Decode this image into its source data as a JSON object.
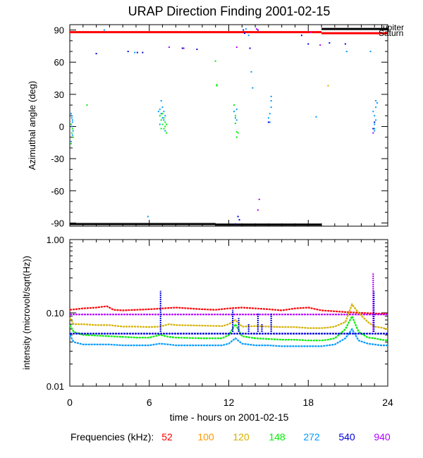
{
  "title": "URAP Direction Finding  2001-02-15",
  "xlabel": "time - hours on 2001-02-15",
  "frequencies_label": "Frequencies (kHz):",
  "colors": {
    "52": "#ff0000",
    "100": "#ff9900",
    "120": "#d4b000",
    "148": "#00ee00",
    "272": "#0099ff",
    "540": "#0000dd",
    "940": "#b000ff"
  },
  "chart_data": [
    {
      "type": "scatter",
      "ylabel": "Azimuthal angle (deg)",
      "xlim": [
        0,
        24
      ],
      "ylim": [
        -93,
        95
      ],
      "xticks": [
        0,
        6,
        12,
        18,
        24
      ],
      "yticks": [
        -90,
        -60,
        -30,
        0,
        30,
        60,
        90
      ],
      "yticklabels": [
        "-90",
        "-60",
        "-30",
        "0",
        "30",
        "60",
        "90"
      ],
      "reference_lines": [
        {
          "name": "Jupiter",
          "color": "#000000",
          "segments": [
            [
              19.0,
              24.0,
              91
            ]
          ]
        },
        {
          "name": "Saturn",
          "color": "#ff0000",
          "segments": [
            [
              0.0,
              19.0,
              88
            ],
            [
              19.0,
              24.0,
              87
            ]
          ]
        },
        {
          "name": "",
          "color": "#000000",
          "segments": [
            [
              0.0,
              11.0,
              -91
            ],
            [
              11.0,
              19.0,
              -91.5
            ]
          ]
        }
      ],
      "points": [
        {
          "f": "272",
          "pts": [
            [
              0.1,
              12
            ],
            [
              0.15,
              8
            ],
            [
              0.2,
              4
            ],
            [
              0.15,
              0
            ],
            [
              0.25,
              -4
            ],
            [
              0.2,
              -8
            ],
            [
              0.1,
              -14
            ],
            [
              0.15,
              10
            ],
            [
              0.2,
              6
            ]
          ]
        },
        {
          "f": "148",
          "pts": [
            [
              0.1,
              2
            ],
            [
              0.2,
              -2
            ],
            [
              0.15,
              -6
            ],
            [
              0.25,
              -10
            ],
            [
              0.1,
              -16
            ],
            [
              1.3,
              20
            ]
          ]
        },
        {
          "f": "540",
          "pts": [
            [
              2.0,
              68
            ],
            [
              4.4,
              70
            ],
            [
              5.1,
              69
            ],
            [
              5.5,
              69
            ]
          ]
        },
        {
          "f": "272",
          "pts": [
            [
              4.9,
              69
            ],
            [
              2.6,
              90
            ],
            [
              5.9,
              -84
            ]
          ]
        },
        {
          "f": "148",
          "pts": [
            [
              6.8,
              10
            ],
            [
              6.9,
              6
            ],
            [
              7.0,
              2
            ],
            [
              7.1,
              -2
            ],
            [
              7.2,
              4
            ],
            [
              7.3,
              -6
            ],
            [
              7.1,
              8
            ],
            [
              7.0,
              12
            ],
            [
              6.9,
              -2
            ],
            [
              7.2,
              0
            ],
            [
              7.3,
              2
            ]
          ]
        },
        {
          "f": "272",
          "pts": [
            [
              6.7,
              14
            ],
            [
              6.8,
              16
            ],
            [
              6.9,
              12
            ],
            [
              7.0,
              8
            ],
            [
              7.1,
              14
            ],
            [
              7.2,
              10
            ],
            [
              6.9,
              24
            ],
            [
              7.0,
              18
            ],
            [
              7.1,
              6
            ],
            [
              6.8,
              2
            ],
            [
              7.2,
              -4
            ]
          ]
        },
        {
          "f": "940",
          "pts": [
            [
              7.5,
              74
            ],
            [
              8.6,
              73
            ]
          ]
        },
        {
          "f": "540",
          "pts": [
            [
              8.5,
              73
            ],
            [
              9.6,
              72
            ]
          ]
        },
        {
          "f": "148",
          "pts": [
            [
              11.0,
              61
            ],
            [
              11.1,
              39
            ],
            [
              11.1,
              38
            ],
            [
              12.4,
              20
            ],
            [
              12.5,
              10
            ],
            [
              12.5,
              3
            ],
            [
              12.6,
              -5
            ],
            [
              12.7,
              -6
            ],
            [
              12.6,
              -10
            ]
          ]
        },
        {
          "f": "272",
          "pts": [
            [
              12.4,
              14
            ],
            [
              12.5,
              8
            ],
            [
              12.6,
              6
            ],
            [
              12.6,
              16
            ],
            [
              13.3,
              91
            ],
            [
              13.5,
              85
            ],
            [
              13.7,
              51
            ],
            [
              13.8,
              36
            ],
            [
              15.2,
              24
            ],
            [
              15.2,
              18
            ],
            [
              15.1,
              12
            ],
            [
              15.0,
              8
            ],
            [
              15.1,
              4
            ],
            [
              15.2,
              28
            ],
            [
              18.6,
              9
            ],
            [
              20.9,
              70
            ],
            [
              22.7,
              70
            ]
          ]
        },
        {
          "f": "540",
          "pts": [
            [
              12.7,
              -84
            ],
            [
              12.8,
              -87
            ],
            [
              12.5,
              -91
            ],
            [
              13.1,
              90
            ],
            [
              13.2,
              87
            ],
            [
              13.6,
              73
            ],
            [
              14.2,
              90
            ],
            [
              15.0,
              4
            ],
            [
              17.5,
              85
            ],
            [
              18.0,
              77
            ],
            [
              19.6,
              78
            ],
            [
              20.8,
              77
            ]
          ]
        },
        {
          "f": "940",
          "pts": [
            [
              12.6,
              74
            ],
            [
              14.3,
              -68
            ],
            [
              14.2,
              -78
            ],
            [
              14.1,
              91
            ],
            [
              18.2,
              88
            ],
            [
              18.9,
              76
            ]
          ]
        },
        {
          "f": "120",
          "pts": [
            [
              19.5,
              38
            ]
          ]
        },
        {
          "f": "272",
          "pts": [
            [
              23.0,
              -4
            ],
            [
              23.0,
              2
            ],
            [
              23.1,
              6
            ],
            [
              23.0,
              10
            ],
            [
              22.9,
              14
            ],
            [
              23.1,
              18
            ],
            [
              23.2,
              22
            ],
            [
              23.1,
              24
            ],
            [
              23.0,
              -2
            ]
          ]
        },
        {
          "f": "540",
          "pts": [
            [
              22.9,
              -2
            ],
            [
              23.0,
              4
            ]
          ]
        },
        {
          "f": "940",
          "pts": [
            [
              22.9,
              -6
            ]
          ]
        }
      ]
    },
    {
      "type": "line",
      "ylabel": "intensity (microvolt/sqrt(Hz))",
      "xlim": [
        0,
        24
      ],
      "ylim": [
        0.01,
        1.0
      ],
      "yscale": "log",
      "xticks": [
        0,
        6,
        12,
        18,
        24
      ],
      "xticklabels": [
        "0",
        "6",
        "12",
        "18",
        "24"
      ],
      "yticks": [
        0.01,
        0.1,
        1.0
      ],
      "yticklabels": [
        "0.01",
        "0.10",
        "1.00"
      ],
      "series": [
        {
          "f": "52",
          "x": [
            0,
            1,
            2,
            2.8,
            3.3,
            4,
            5,
            6,
            7,
            8,
            9,
            10,
            11,
            12,
            13,
            14,
            15,
            16,
            17,
            18,
            19,
            20,
            21,
            22,
            23,
            24
          ],
          "y": [
            0.11,
            0.115,
            0.118,
            0.123,
            0.11,
            0.108,
            0.11,
            0.112,
            0.115,
            0.118,
            0.115,
            0.112,
            0.11,
            0.115,
            0.118,
            0.115,
            0.112,
            0.108,
            0.115,
            0.118,
            0.108,
            0.105,
            0.102,
            0.1,
            0.098,
            0.097
          ]
        },
        {
          "f": "940",
          "x": [
            0,
            2,
            4,
            6,
            8,
            10,
            12,
            14,
            16,
            18,
            20,
            22,
            24
          ],
          "y": [
            0.095,
            0.095,
            0.095,
            0.095,
            0.095,
            0.095,
            0.095,
            0.095,
            0.095,
            0.095,
            0.095,
            0.095,
            0.095
          ]
        },
        {
          "f": "120",
          "x": [
            0,
            0.3,
            1,
            2,
            3,
            4,
            5,
            6,
            6.8,
            7.5,
            8,
            10,
            11.5,
            12,
            12.5,
            13,
            14,
            15,
            16,
            17,
            18,
            19,
            19.5,
            20,
            20.8,
            21.3,
            21.8,
            22.5,
            23,
            23.5,
            24
          ],
          "y": [
            0.085,
            0.07,
            0.07,
            0.068,
            0.068,
            0.065,
            0.065,
            0.064,
            0.065,
            0.07,
            0.068,
            0.067,
            0.066,
            0.07,
            0.08,
            0.065,
            0.066,
            0.065,
            0.064,
            0.064,
            0.062,
            0.062,
            0.063,
            0.065,
            0.075,
            0.13,
            0.1,
            0.075,
            0.065,
            0.063,
            0.06
          ]
        },
        {
          "f": "148",
          "x": [
            0,
            0.3,
            1,
            2,
            3,
            4,
            5,
            6,
            6.8,
            7.5,
            8,
            10,
            11.5,
            12,
            12.5,
            13,
            14,
            15,
            16,
            17,
            18,
            19,
            19.5,
            20,
            20.8,
            21.3,
            21.8,
            22.5,
            23,
            23.5,
            24
          ],
          "y": [
            0.068,
            0.055,
            0.05,
            0.049,
            0.048,
            0.047,
            0.046,
            0.046,
            0.05,
            0.047,
            0.046,
            0.045,
            0.045,
            0.05,
            0.07,
            0.048,
            0.045,
            0.044,
            0.043,
            0.043,
            0.042,
            0.042,
            0.043,
            0.045,
            0.06,
            0.09,
            0.055,
            0.046,
            0.045,
            0.043,
            0.042
          ]
        },
        {
          "f": "272",
          "x": [
            0,
            0.3,
            1,
            2,
            3,
            4,
            5,
            6,
            6.8,
            7.5,
            8,
            10,
            11.5,
            12,
            12.5,
            13,
            14,
            15,
            16,
            17,
            18,
            19,
            19.5,
            20,
            20.8,
            21.3,
            21.8,
            22.5,
            23,
            23.5,
            24
          ],
          "y": [
            0.05,
            0.04,
            0.037,
            0.037,
            0.037,
            0.036,
            0.036,
            0.036,
            0.038,
            0.037,
            0.036,
            0.036,
            0.036,
            0.038,
            0.045,
            0.038,
            0.036,
            0.036,
            0.035,
            0.035,
            0.035,
            0.035,
            0.036,
            0.037,
            0.045,
            0.06,
            0.042,
            0.038,
            0.037,
            0.036,
            0.036
          ]
        },
        {
          "f": "540",
          "x": [
            0,
            2,
            4,
            6,
            8,
            10,
            12,
            14,
            16,
            18,
            20,
            22,
            24
          ],
          "y": [
            0.052,
            0.052,
            0.052,
            0.052,
            0.052,
            0.052,
            0.052,
            0.052,
            0.052,
            0.052,
            0.052,
            0.052,
            0.052
          ]
        }
      ],
      "spikes": [
        {
          "x": 6.85,
          "peak": 0.2,
          "f": "540"
        },
        {
          "x": 12.3,
          "peak": 0.11,
          "f": "540"
        },
        {
          "x": 12.75,
          "peak": 0.085,
          "f": "540"
        },
        {
          "x": 13.5,
          "peak": 0.07,
          "f": "540"
        },
        {
          "x": 14.2,
          "peak": 0.1,
          "f": "540"
        },
        {
          "x": 14.5,
          "peak": 0.07,
          "f": "540"
        },
        {
          "x": 15.2,
          "peak": 0.1,
          "f": "540"
        },
        {
          "x": 22.9,
          "peak": 0.35,
          "f": "940"
        },
        {
          "x": 22.95,
          "peak": 0.2,
          "f": "540"
        }
      ]
    }
  ],
  "legend": [
    {
      "label": "52",
      "f": "52"
    },
    {
      "label": "100",
      "f": "100"
    },
    {
      "label": "120",
      "f": "120"
    },
    {
      "label": "148",
      "f": "148"
    },
    {
      "label": "272",
      "f": "272"
    },
    {
      "label": "540",
      "f": "540"
    },
    {
      "label": "940",
      "f": "940"
    }
  ],
  "planet_labels": {
    "jupiter": "Jupiter",
    "saturn": "Saturn"
  }
}
